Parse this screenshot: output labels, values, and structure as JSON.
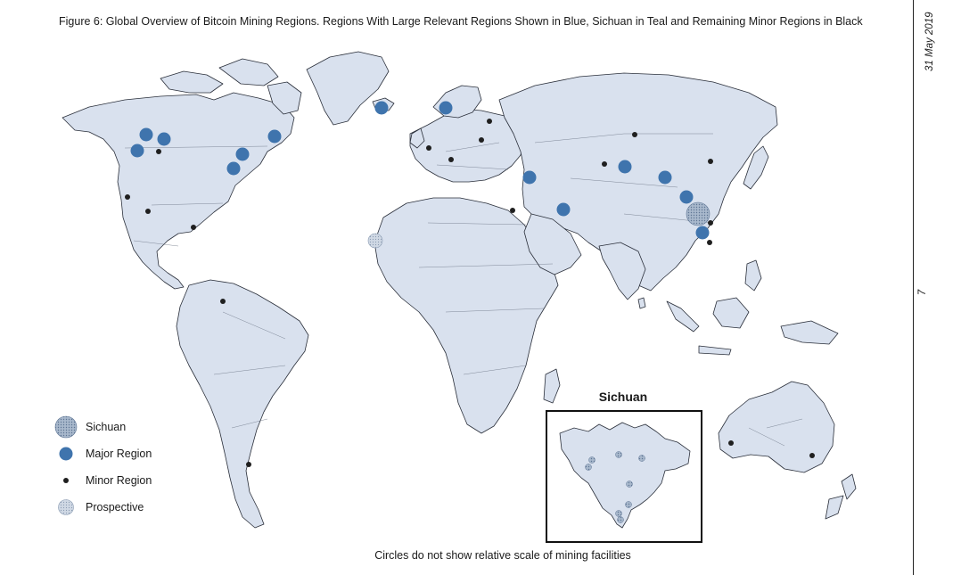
{
  "title": "Figure 6: Global Overview of Bitcoin Mining Regions. Regions With Large Relevant Regions Shown in Blue, Sichuan in Teal and Remaining Minor Regions in Black",
  "side": {
    "date": "31 May 2019",
    "page": "7"
  },
  "footer": "Circles do not show relative scale of mining facilities",
  "legend": [
    {
      "label": "Sichuan",
      "icon": "sichuan-circle-icon"
    },
    {
      "label": "Major Region",
      "icon": "major-region-dot-icon"
    },
    {
      "label": "Minor Region",
      "icon": "minor-region-dot-icon"
    },
    {
      "label": "Prospective",
      "icon": "prospective-circle-icon"
    }
  ],
  "inset": {
    "title": "Sichuan"
  },
  "colors": {
    "land": "#d9e1ee",
    "coast": "#2a2f3a",
    "major": "#3f74ad",
    "minor": "#1f1f1f",
    "sichuan": "#8aa3c2",
    "prospective": "#b8c6d8"
  }
}
